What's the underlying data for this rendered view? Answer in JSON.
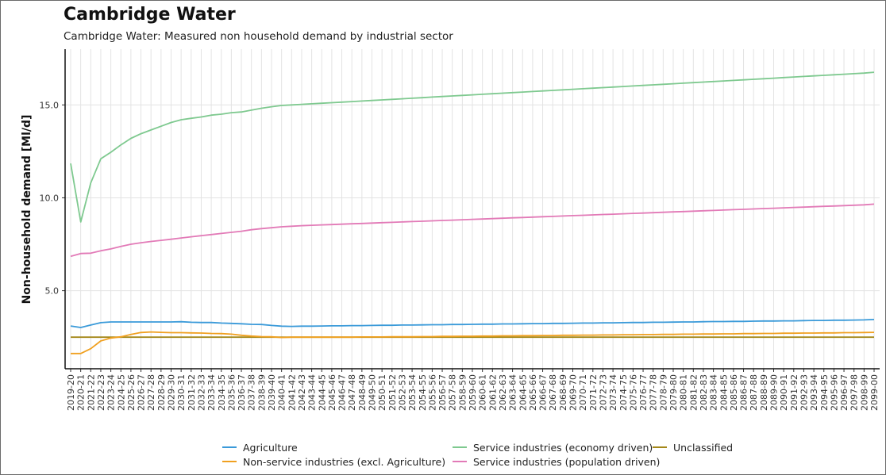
{
  "title": "Cambridge Water",
  "subtitle": "Cambridge Water: Measured non household demand by industrial sector",
  "chart_data": {
    "type": "line",
    "title": "Cambridge Water",
    "subtitle": "Cambridge Water: Measured non household demand by industrial sector",
    "xlabel": "",
    "ylabel": "Non-household demand [Ml/d]",
    "ylim": [
      0.8,
      18.0
    ],
    "yticks": [
      5.0,
      10.0,
      15.0
    ],
    "grid": true,
    "legend_position": "bottom",
    "categories": [
      "2019-20",
      "2020-21",
      "2021-22",
      "2022-23",
      "2023-24",
      "2024-25",
      "2025-26",
      "2026-27",
      "2027-28",
      "2028-29",
      "2029-30",
      "2030-31",
      "2031-32",
      "2032-33",
      "2033-34",
      "2034-35",
      "2035-36",
      "2036-37",
      "2037-38",
      "2038-39",
      "2039-40",
      "2040-41",
      "2041-42",
      "2042-43",
      "2043-44",
      "2044-45",
      "2045-46",
      "2046-47",
      "2047-48",
      "2048-49",
      "2049-50",
      "2050-51",
      "2051-52",
      "2052-53",
      "2053-54",
      "2054-55",
      "2055-56",
      "2056-57",
      "2057-58",
      "2058-59",
      "2059-60",
      "2060-61",
      "2061-62",
      "2062-63",
      "2063-64",
      "2064-65",
      "2065-66",
      "2066-67",
      "2067-68",
      "2068-69",
      "2069-70",
      "2070-71",
      "2071-72",
      "2072-73",
      "2073-74",
      "2074-75",
      "2075-76",
      "2076-77",
      "2077-78",
      "2078-79",
      "2079-80",
      "2080-81",
      "2081-82",
      "2082-83",
      "2083-84",
      "2084-85",
      "2085-86",
      "2086-87",
      "2087-88",
      "2088-89",
      "2089-90",
      "2090-91",
      "2091-92",
      "2092-93",
      "2093-94",
      "2094-95",
      "2095-96",
      "2096-97",
      "2097-98",
      "2098-99",
      "2099-00"
    ],
    "series": [
      {
        "name": "Agriculture",
        "color": "#3a9ad9",
        "values": [
          3.1,
          3.02,
          3.15,
          3.28,
          3.32,
          3.32,
          3.32,
          3.32,
          3.32,
          3.32,
          3.32,
          3.33,
          3.3,
          3.29,
          3.29,
          3.26,
          3.24,
          3.22,
          3.19,
          3.18,
          3.13,
          3.09,
          3.08,
          3.09,
          3.09,
          3.1,
          3.11,
          3.11,
          3.12,
          3.12,
          3.13,
          3.14,
          3.14,
          3.15,
          3.15,
          3.16,
          3.17,
          3.17,
          3.18,
          3.18,
          3.19,
          3.2,
          3.2,
          3.21,
          3.21,
          3.22,
          3.23,
          3.23,
          3.24,
          3.24,
          3.25,
          3.26,
          3.26,
          3.27,
          3.27,
          3.28,
          3.29,
          3.29,
          3.3,
          3.3,
          3.31,
          3.32,
          3.32,
          3.33,
          3.34,
          3.34,
          3.35,
          3.35,
          3.36,
          3.37,
          3.37,
          3.38,
          3.38,
          3.39,
          3.4,
          3.4,
          3.41,
          3.41,
          3.42,
          3.43,
          3.45
        ]
      },
      {
        "name": "Non-service industries (excl. Agriculture)",
        "color": "#f0a020",
        "values": [
          1.62,
          1.62,
          1.88,
          2.3,
          2.45,
          2.52,
          2.65,
          2.75,
          2.78,
          2.76,
          2.74,
          2.74,
          2.73,
          2.72,
          2.7,
          2.69,
          2.66,
          2.6,
          2.56,
          2.53,
          2.52,
          2.48,
          2.5,
          2.5,
          2.5,
          2.5,
          2.5,
          2.5,
          2.5,
          2.51,
          2.51,
          2.51,
          2.52,
          2.52,
          2.52,
          2.53,
          2.53,
          2.54,
          2.54,
          2.55,
          2.55,
          2.56,
          2.56,
          2.57,
          2.57,
          2.58,
          2.58,
          2.59,
          2.59,
          2.6,
          2.6,
          2.61,
          2.61,
          2.62,
          2.62,
          2.63,
          2.63,
          2.64,
          2.64,
          2.65,
          2.65,
          2.66,
          2.66,
          2.67,
          2.67,
          2.68,
          2.68,
          2.69,
          2.69,
          2.7,
          2.7,
          2.71,
          2.71,
          2.72,
          2.72,
          2.73,
          2.73,
          2.74,
          2.74,
          2.75,
          2.76
        ]
      },
      {
        "name": "Service industries (economy driven)",
        "color": "#7ec98f",
        "values": [
          11.85,
          8.7,
          10.8,
          12.1,
          12.45,
          12.85,
          13.2,
          13.45,
          13.65,
          13.85,
          14.05,
          14.2,
          14.28,
          14.35,
          14.45,
          14.5,
          14.58,
          14.62,
          14.72,
          14.82,
          14.9,
          14.97,
          15.0,
          15.03,
          15.06,
          15.09,
          15.12,
          15.15,
          15.18,
          15.21,
          15.24,
          15.27,
          15.3,
          15.33,
          15.36,
          15.39,
          15.42,
          15.45,
          15.48,
          15.51,
          15.54,
          15.57,
          15.6,
          15.63,
          15.66,
          15.69,
          15.72,
          15.75,
          15.78,
          15.81,
          15.84,
          15.87,
          15.9,
          15.93,
          15.96,
          15.99,
          16.02,
          16.05,
          16.08,
          16.11,
          16.14,
          16.17,
          16.2,
          16.23,
          16.26,
          16.29,
          16.32,
          16.35,
          16.38,
          16.41,
          16.44,
          16.47,
          16.5,
          16.53,
          16.56,
          16.59,
          16.62,
          16.65,
          16.68,
          16.71,
          16.76
        ]
      },
      {
        "name": "Service industries (population driven)",
        "color": "#e27ab7",
        "values": [
          6.85,
          7.0,
          7.02,
          7.15,
          7.25,
          7.38,
          7.5,
          7.58,
          7.65,
          7.71,
          7.77,
          7.84,
          7.9,
          7.96,
          8.02,
          8.08,
          8.14,
          8.2,
          8.28,
          8.34,
          8.39,
          8.44,
          8.47,
          8.5,
          8.52,
          8.54,
          8.56,
          8.58,
          8.6,
          8.62,
          8.64,
          8.66,
          8.68,
          8.7,
          8.72,
          8.74,
          8.76,
          8.78,
          8.8,
          8.82,
          8.84,
          8.86,
          8.88,
          8.9,
          8.92,
          8.94,
          8.96,
          8.98,
          9.0,
          9.02,
          9.04,
          9.06,
          9.08,
          9.1,
          9.12,
          9.14,
          9.16,
          9.18,
          9.2,
          9.22,
          9.24,
          9.26,
          9.28,
          9.3,
          9.32,
          9.34,
          9.36,
          9.38,
          9.4,
          9.42,
          9.44,
          9.46,
          9.48,
          9.5,
          9.52,
          9.54,
          9.56,
          9.58,
          9.6,
          9.62,
          9.66
        ]
      },
      {
        "name": "Unclassified",
        "color": "#a48718",
        "values": [
          2.5,
          2.5,
          2.5,
          2.5,
          2.5,
          2.5,
          2.5,
          2.5,
          2.5,
          2.5,
          2.5,
          2.5,
          2.5,
          2.5,
          2.5,
          2.5,
          2.5,
          2.5,
          2.5,
          2.5,
          2.5,
          2.5,
          2.5,
          2.5,
          2.5,
          2.5,
          2.5,
          2.5,
          2.5,
          2.5,
          2.5,
          2.5,
          2.5,
          2.5,
          2.5,
          2.5,
          2.5,
          2.5,
          2.5,
          2.5,
          2.5,
          2.5,
          2.5,
          2.5,
          2.5,
          2.5,
          2.5,
          2.5,
          2.5,
          2.5,
          2.5,
          2.5,
          2.5,
          2.5,
          2.5,
          2.5,
          2.5,
          2.5,
          2.5,
          2.5,
          2.5,
          2.5,
          2.5,
          2.5,
          2.5,
          2.5,
          2.5,
          2.5,
          2.5,
          2.5,
          2.5,
          2.5,
          2.5,
          2.5,
          2.5,
          2.5,
          2.5,
          2.5,
          2.5,
          2.5,
          2.5
        ]
      }
    ]
  }
}
